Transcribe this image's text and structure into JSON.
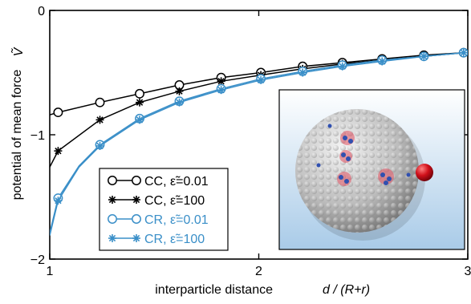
{
  "chart_data": {
    "type": "line",
    "xlabel": "interparticle distance",
    "xlabel_var": "d / (R+r)",
    "ylabel": "potential of mean force",
    "ylabel_var": "Ṽ",
    "xlim": [
      1,
      3
    ],
    "ylim": [
      -2,
      0
    ],
    "xticks": [
      1,
      2,
      3
    ],
    "yticks": [
      0,
      -1,
      -2
    ],
    "x": [
      1.04,
      1.24,
      1.43,
      1.62,
      1.82,
      2.01,
      2.21,
      2.4,
      2.59,
      2.79,
      2.98
    ],
    "series": [
      {
        "name": "CC, ε̃=0.01",
        "color": "#000000",
        "marker": "circle",
        "values": [
          -0.82,
          -0.74,
          -0.67,
          -0.6,
          -0.54,
          -0.5,
          -0.45,
          -0.42,
          -0.39,
          -0.36,
          -0.34
        ],
        "curve": [
          [
            1.0,
            -0.84
          ],
          [
            1.04,
            -0.82
          ],
          [
            1.24,
            -0.74
          ],
          [
            1.43,
            -0.67
          ],
          [
            1.62,
            -0.6
          ],
          [
            1.82,
            -0.54
          ],
          [
            2.01,
            -0.5
          ],
          [
            2.21,
            -0.45
          ],
          [
            2.4,
            -0.42
          ],
          [
            2.59,
            -0.39
          ],
          [
            2.79,
            -0.36
          ],
          [
            2.98,
            -0.34
          ],
          [
            3.0,
            -0.33
          ]
        ]
      },
      {
        "name": "CC, ε̃=100",
        "color": "#000000",
        "marker": "asterisk",
        "values": [
          -1.13,
          -0.88,
          -0.74,
          -0.65,
          -0.57,
          -0.52,
          -0.47,
          -0.43,
          -0.4,
          -0.37,
          -0.34
        ],
        "curve": [
          [
            1.0,
            -1.26
          ],
          [
            1.04,
            -1.13
          ],
          [
            1.24,
            -0.88
          ],
          [
            1.43,
            -0.74
          ],
          [
            1.62,
            -0.65
          ],
          [
            1.82,
            -0.57
          ],
          [
            2.01,
            -0.52
          ],
          [
            2.21,
            -0.47
          ],
          [
            2.4,
            -0.43
          ],
          [
            2.59,
            -0.4
          ],
          [
            2.79,
            -0.37
          ],
          [
            2.98,
            -0.34
          ],
          [
            3.0,
            -0.33
          ]
        ]
      },
      {
        "name": "CR, ε̃=0.01",
        "color": "#3a8fc8",
        "marker": "circle",
        "values": [
          -1.51,
          -1.08,
          -0.87,
          -0.73,
          -0.63,
          -0.55,
          -0.49,
          -0.44,
          -0.4,
          -0.37,
          -0.34
        ],
        "curve": [
          [
            1.0,
            -1.79
          ],
          [
            1.04,
            -1.51
          ],
          [
            1.14,
            -1.25
          ],
          [
            1.24,
            -1.08
          ],
          [
            1.43,
            -0.87
          ],
          [
            1.62,
            -0.73
          ],
          [
            1.82,
            -0.63
          ],
          [
            2.01,
            -0.55
          ],
          [
            2.21,
            -0.49
          ],
          [
            2.4,
            -0.44
          ],
          [
            2.59,
            -0.4
          ],
          [
            2.79,
            -0.37
          ],
          [
            2.98,
            -0.34
          ],
          [
            3.0,
            -0.34
          ]
        ]
      },
      {
        "name": "CR, ε̃=100",
        "color": "#3a8fc8",
        "marker": "asterisk",
        "values": [
          -1.53,
          -1.09,
          -0.88,
          -0.74,
          -0.64,
          -0.56,
          -0.5,
          -0.45,
          -0.41,
          -0.37,
          -0.34
        ],
        "curve": [
          [
            1.0,
            -1.81
          ],
          [
            1.04,
            -1.53
          ],
          [
            1.14,
            -1.26
          ],
          [
            1.24,
            -1.09
          ],
          [
            1.43,
            -0.88
          ],
          [
            1.62,
            -0.74
          ],
          [
            1.82,
            -0.64
          ],
          [
            2.01,
            -0.56
          ],
          [
            2.21,
            -0.5
          ],
          [
            2.4,
            -0.45
          ],
          [
            2.59,
            -0.41
          ],
          [
            2.79,
            -0.37
          ],
          [
            2.98,
            -0.34
          ],
          [
            3.0,
            -0.34
          ]
        ]
      }
    ],
    "legend_position": "lower-left",
    "inset": {
      "description_colors": {
        "background_top": "#ffffff",
        "background_bottom": "#a9cbe8",
        "sphere": "#c9c9c9",
        "particle": "#d0101a",
        "patch_highlight": "#e05060",
        "patch_blue": "#3050b0"
      }
    }
  }
}
